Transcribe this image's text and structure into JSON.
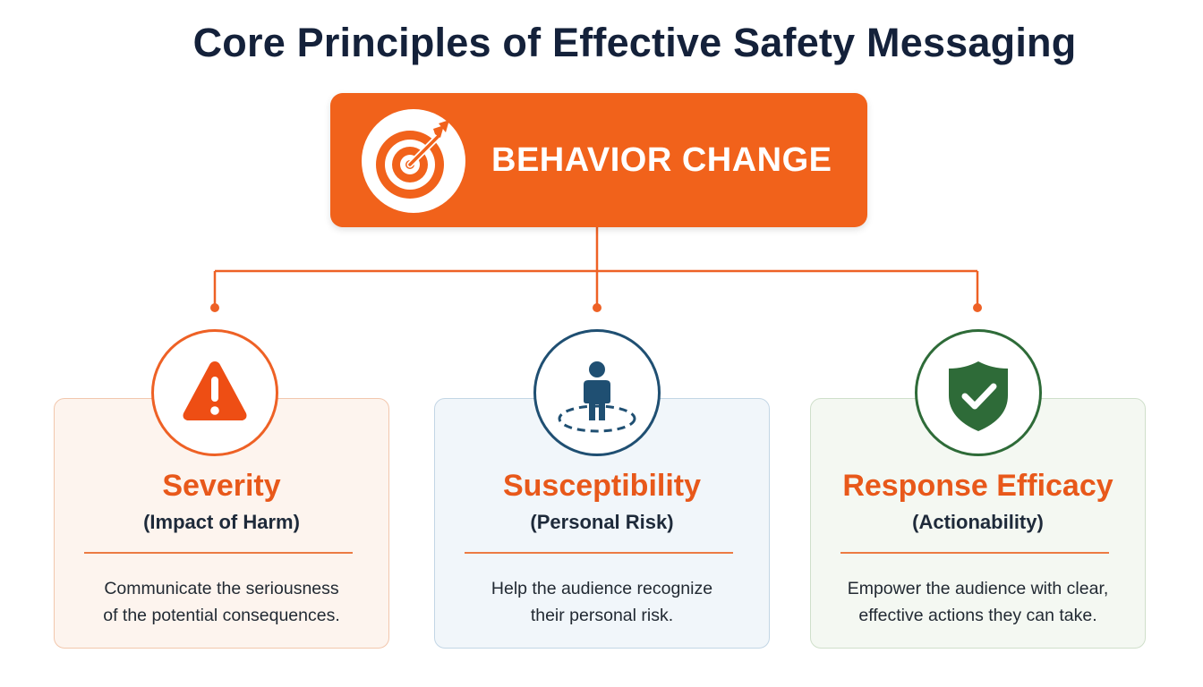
{
  "title": "Core Principles of Effective Safety Messaging",
  "center": {
    "label": "BEHAVIOR CHANGE",
    "icon": "target-icon",
    "color": "#f1621b"
  },
  "principles": [
    {
      "title": "Severity",
      "subtitle": "(Impact of Harm)",
      "description_lines": [
        "Communicate the seriousness",
        "of the potential consequences."
      ],
      "icon": "warning-icon",
      "accent": "#ee6125"
    },
    {
      "title": "Susceptibility",
      "subtitle": "(Personal Risk)",
      "description_lines": [
        "Help the audience recognize",
        "their personal risk."
      ],
      "icon": "person-in-zone-icon",
      "accent": "#1f4f72"
    },
    {
      "title": "Response Efficacy",
      "subtitle": "(Actionability)",
      "description_lines": [
        "Empower the audience with clear,",
        "effective actions they can take."
      ],
      "icon": "shield-check-icon",
      "accent": "#2e6b38"
    }
  ]
}
